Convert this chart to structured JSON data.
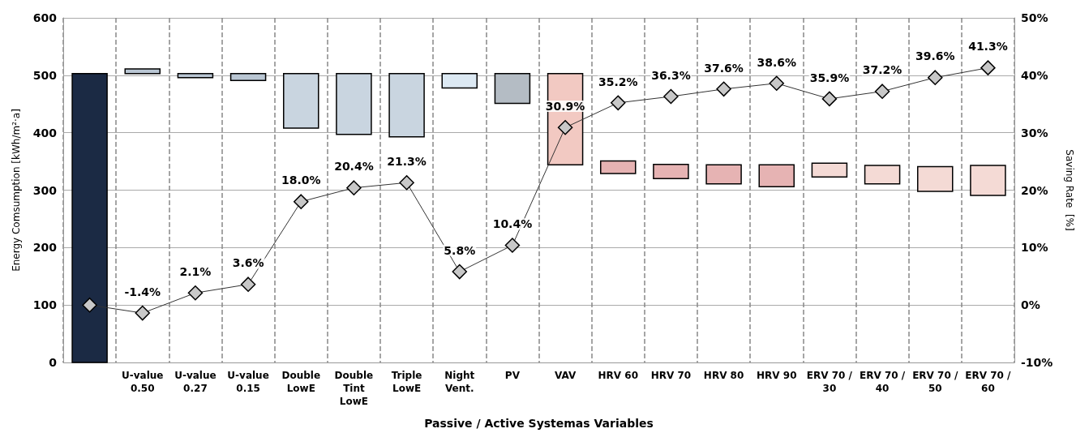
{
  "chart_data": {
    "type": "bar",
    "xlabel": "Passive / Active Systemas Variables",
    "ylabel": "Energy Comsumption [kWh/m²·a]",
    "y2label": "Saving Rate  [%]",
    "categories": [
      null,
      "U-value\n0.50",
      "U-value\n0.27",
      "U-value\n0.15",
      "Double\nLowE",
      "Double\nTint\nLowE",
      "Triple\nLowE",
      "Night\nVent.",
      "PV",
      "VAV",
      "HRV 60",
      "HRV 70",
      "HRV 80",
      "HRV 90",
      "ERV 70 /\n30",
      "ERV 70 /\n40",
      "ERV 70 /\n50",
      "ERV 70 /\n60"
    ],
    "series": [
      {
        "base": [
          0,
          503,
          496,
          491,
          408,
          397,
          393,
          478,
          451,
          344,
          329,
          320,
          311,
          306,
          323,
          311,
          298,
          291
        ],
        "values": [
          503,
          8,
          7,
          12,
          95,
          106,
          110,
          25,
          52,
          159,
          22,
          25,
          33,
          38,
          24,
          32,
          43,
          52
        ],
        "colors": [
          "#1b2a44",
          "#b9c6d3",
          "#b9c6d3",
          "#b9c6d3",
          "#c9d5e0",
          "#c9d5e0",
          "#c9d5e0",
          "#dce9f3",
          "#b4bcc4",
          "#f2c9c2",
          "#e6b3b3",
          "#e6b3b3",
          "#e6b3b3",
          "#e6b3b3",
          "#f4dad5",
          "#f4dad5",
          "#f4dad5",
          "#f4dad5"
        ]
      },
      {
        "type": "line",
        "axis": "y2",
        "color": "#c8c8c8",
        "values": [
          0,
          -1.4,
          2.1,
          3.6,
          18.0,
          20.4,
          21.3,
          5.8,
          10.4,
          30.9,
          35.2,
          36.3,
          37.6,
          38.6,
          35.9,
          37.2,
          39.6,
          41.3
        ],
        "value_labels": [
          null,
          "-1.4%",
          "2.1%",
          "3.6%",
          "18.0%",
          "20.4%",
          "21.3%",
          "5.8%",
          "10.4%",
          "30.9%",
          "35.2%",
          "36.3%",
          "37.6%",
          "38.6%",
          "35.9%",
          "37.2%",
          "39.6%",
          "41.3%"
        ]
      }
    ],
    "ylim": [
      0,
      600
    ],
    "yticks": [
      0,
      100,
      200,
      300,
      400,
      500,
      600
    ],
    "y2lim": [
      -10,
      50
    ],
    "y2ticks": [
      {
        "value": -10,
        "label": "-10%"
      },
      {
        "value": 0,
        "label": "0%"
      },
      {
        "value": 10,
        "label": "10%"
      },
      {
        "value": 20,
        "label": "20%"
      },
      {
        "value": 30,
        "label": "30%"
      },
      {
        "value": 40,
        "label": "40%"
      },
      {
        "value": 50,
        "label": "50%"
      }
    ],
    "grid": true,
    "marker": "diamond",
    "line_style": "solid"
  }
}
